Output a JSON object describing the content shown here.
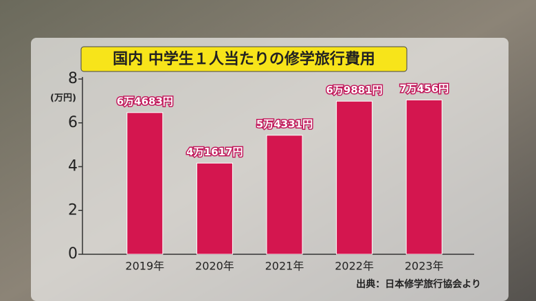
{
  "chart_data": {
    "type": "bar",
    "title": "国内 中学生１人当たりの修学旅行費用",
    "y_unit_label": "(万円)",
    "categories": [
      "2019年",
      "2020年",
      "2021年",
      "2022年",
      "2023年"
    ],
    "values": [
      6.4683,
      4.1617,
      5.4331,
      6.9881,
      7.0456
    ],
    "value_labels": [
      "6万4683円",
      "4万1617円",
      "5万4331円",
      "6万9881円",
      "7万456円"
    ],
    "color": "#d4164f",
    "ylim": [
      0,
      8
    ],
    "yticks": [
      0,
      2,
      4,
      6,
      8
    ],
    "source": "出典：日本修学旅行協会より"
  }
}
